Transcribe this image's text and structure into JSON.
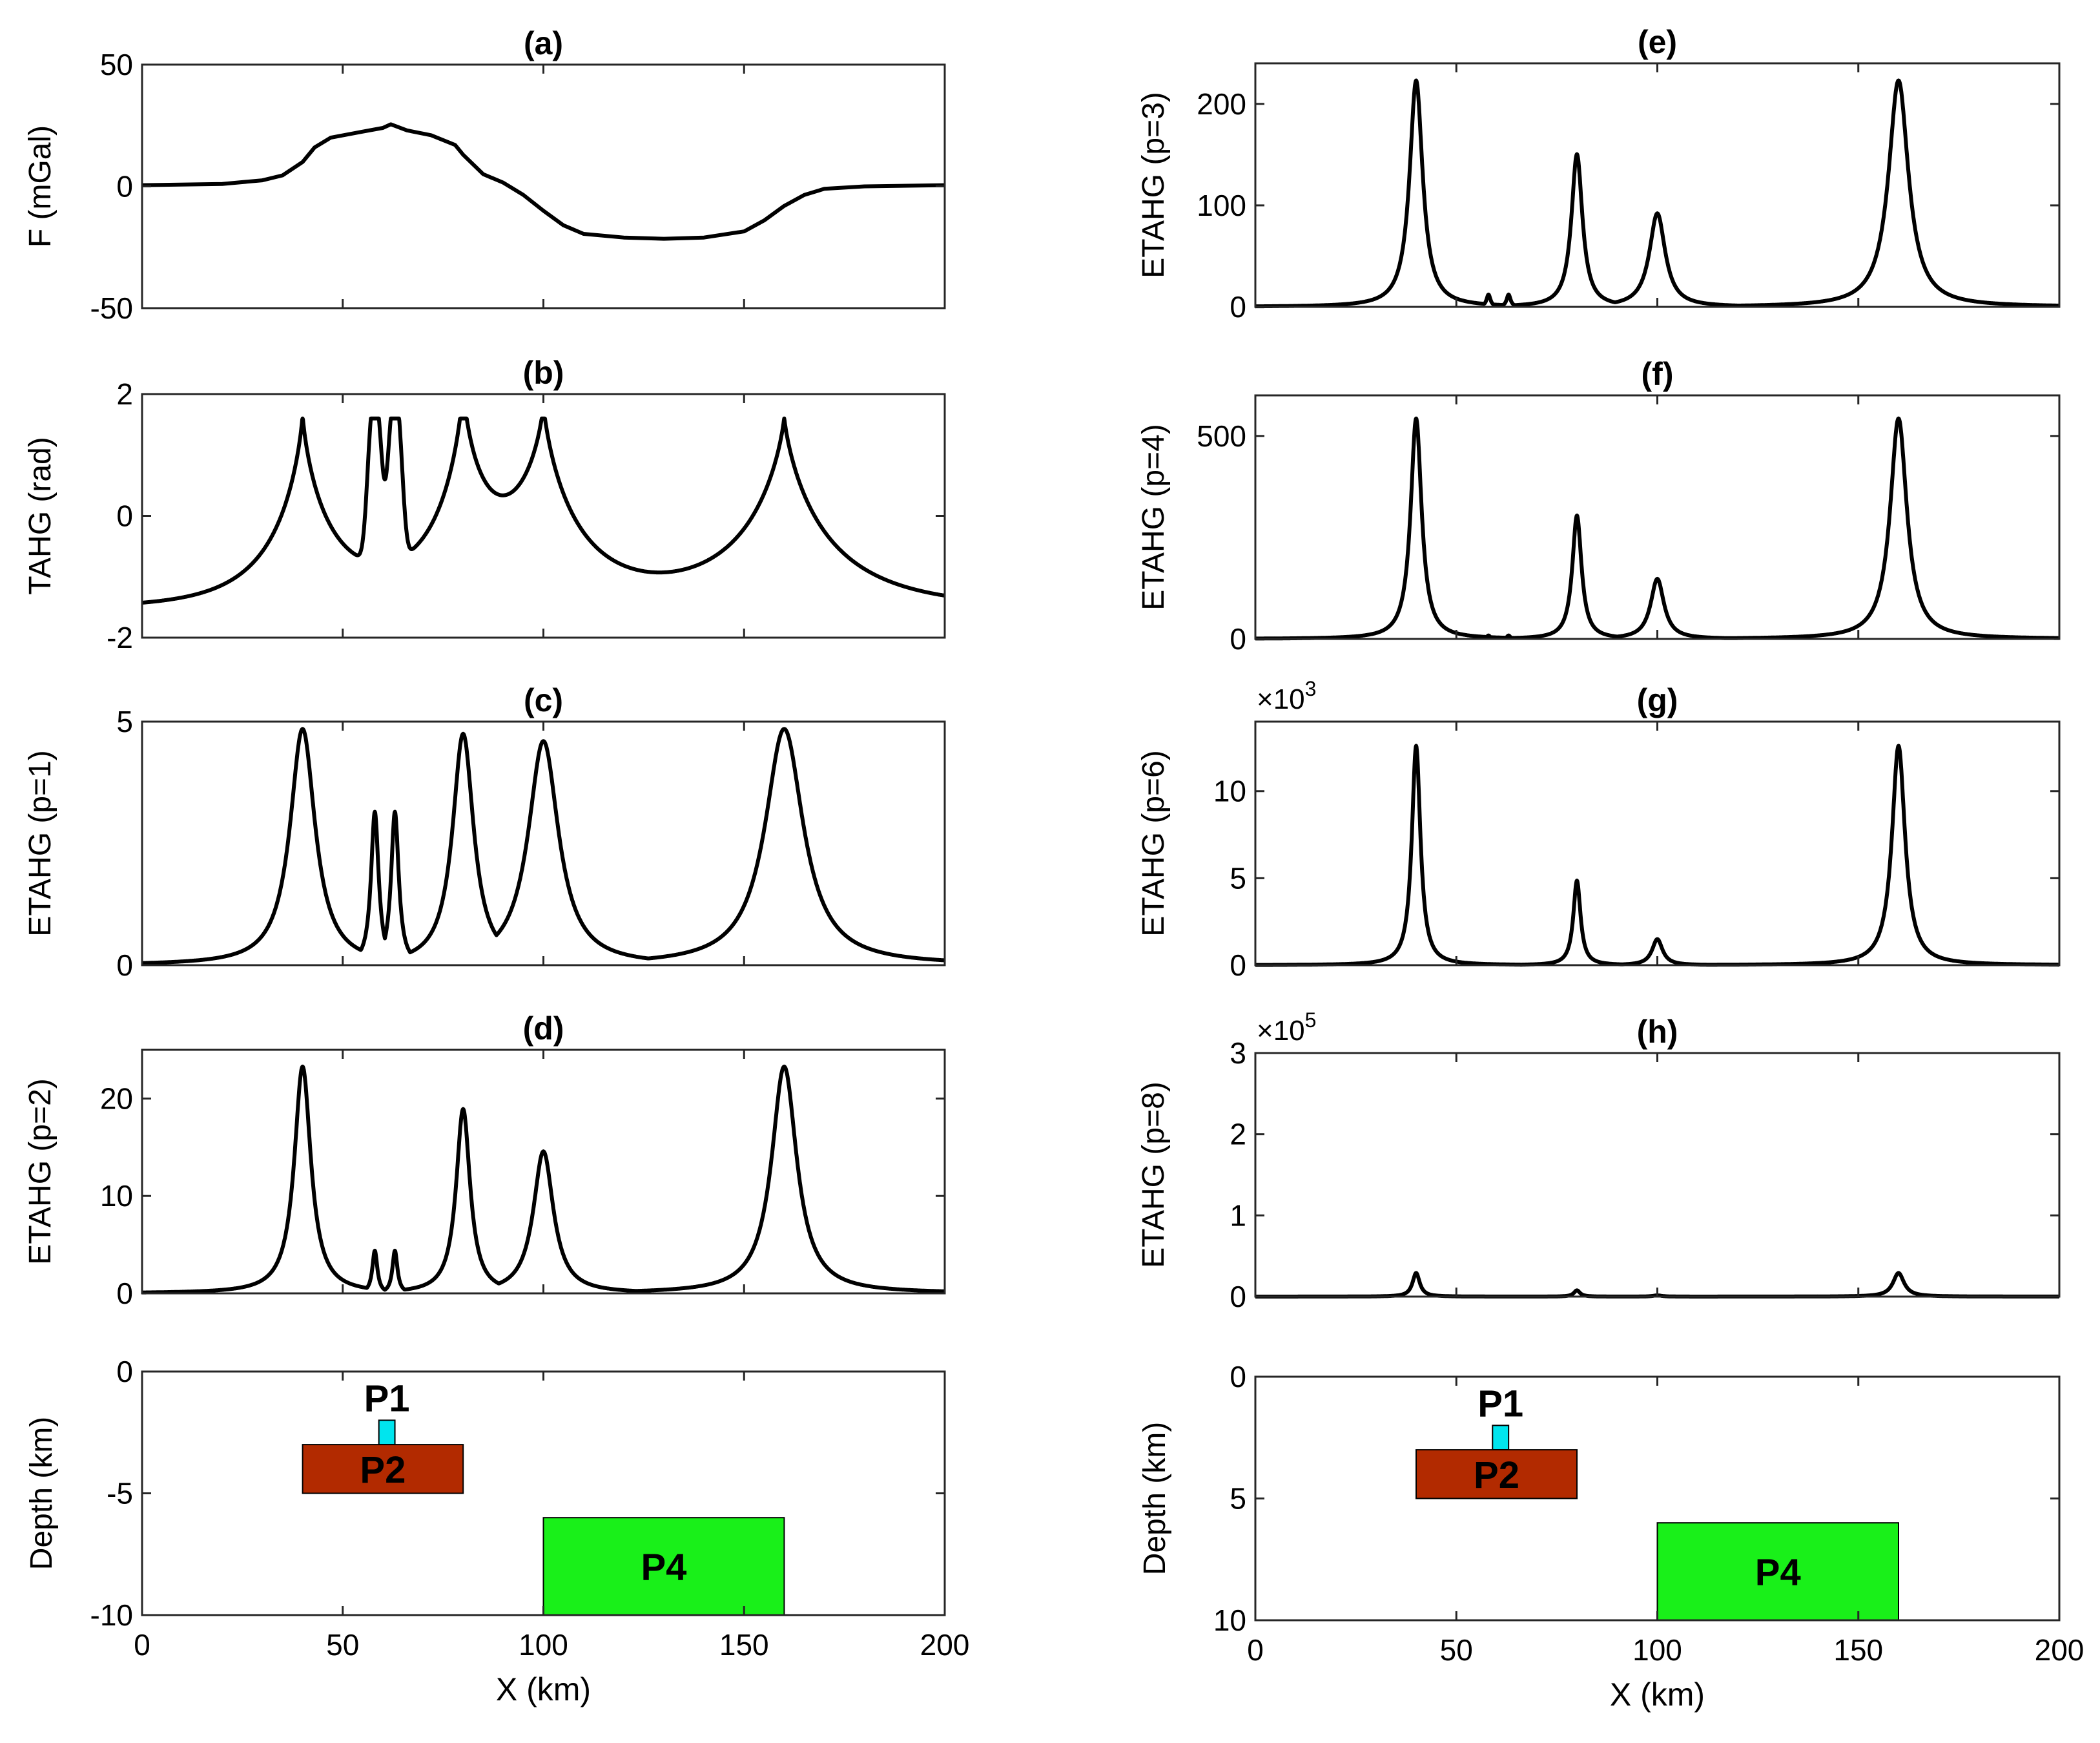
{
  "chart_data": [
    {
      "id": "a",
      "type": "line",
      "title": "(a)",
      "ylabel": "F (mGal)",
      "ylim": [
        -50,
        50
      ],
      "yticks": [
        -50,
        0,
        50
      ],
      "xlim": [
        0,
        200
      ],
      "series": [
        {
          "name": "F",
          "x": [
            0,
            20,
            30,
            35,
            40,
            43,
            47,
            55,
            60,
            62,
            66,
            72,
            78,
            80,
            85,
            90,
            95,
            100,
            105,
            110,
            120,
            130,
            140,
            150,
            155,
            160,
            165,
            170,
            180,
            200
          ],
          "values": [
            0.5,
            1,
            2.5,
            4.5,
            10,
            16,
            20,
            22.5,
            24,
            25.5,
            23,
            21,
            17,
            13,
            5,
            1.5,
            -3.5,
            -10,
            -16,
            -19.5,
            -21,
            -21.5,
            -21,
            -18.5,
            -14,
            -8,
            -3.5,
            -1,
            0,
            0.5
          ]
        }
      ]
    },
    {
      "id": "b",
      "type": "line",
      "title": "(b)",
      "ylabel": "TAHG (rad)",
      "ylim": [
        -2,
        2
      ],
      "yticks": [
        -2,
        0,
        2
      ],
      "xlim": [
        0,
        200
      ],
      "series": [
        {
          "name": "TAHG",
          "kind": "tahg"
        }
      ]
    },
    {
      "id": "c",
      "type": "line",
      "title": "(c)",
      "ylabel": "ETAHG (p=1)",
      "ylim": [
        0,
        5
      ],
      "yticks": [
        0,
        5
      ],
      "xlim": [
        0,
        200
      ],
      "series": [
        {
          "name": "ETAHG p=1",
          "kind": "etahg",
          "p": 1
        }
      ]
    },
    {
      "id": "d",
      "type": "line",
      "title": "(d)",
      "ylabel": "ETAHG (p=2)",
      "ylim": [
        0,
        25
      ],
      "yticks": [
        0,
        10,
        20
      ],
      "xlim": [
        0,
        200
      ],
      "series": [
        {
          "name": "ETAHG p=2",
          "kind": "etahg",
          "p": 2
        }
      ]
    },
    {
      "id": "e",
      "type": "line",
      "title": "(e)",
      "ylabel": "ETAHG (p=3)",
      "ylim": [
        0,
        240
      ],
      "yticks": [
        0,
        100,
        200
      ],
      "xlim": [
        0,
        200
      ],
      "series": [
        {
          "name": "ETAHG p=3",
          "kind": "etahg",
          "p": 3
        }
      ]
    },
    {
      "id": "f",
      "type": "line",
      "title": "(f)",
      "ylabel": "ETAHG (p=4)",
      "ylim": [
        0,
        600
      ],
      "yticks": [
        0,
        500
      ],
      "xlim": [
        0,
        200
      ],
      "series": [
        {
          "name": "ETAHG p=4",
          "kind": "etahg",
          "p": 4
        }
      ]
    },
    {
      "id": "g",
      "type": "line",
      "title": "(g)",
      "ylabel": "ETAHG (p=6)",
      "multiplier_base": "×10",
      "multiplier_exp": "3",
      "ylim": [
        0,
        14
      ],
      "yticks": [
        0,
        5,
        10
      ],
      "xlim": [
        0,
        200
      ],
      "series": [
        {
          "name": "ETAHG p=6",
          "kind": "etahg",
          "p": 6
        }
      ]
    },
    {
      "id": "h",
      "type": "line",
      "title": "(h)",
      "ylabel": "ETAHG (p=8)",
      "multiplier_base": "×10",
      "multiplier_exp": "5",
      "ylim": [
        0,
        3
      ],
      "yticks": [
        0,
        1,
        2,
        3
      ],
      "xlim": [
        0,
        200
      ],
      "series": [
        {
          "name": "ETAHG p=8",
          "kind": "etahg",
          "p": 8
        }
      ]
    },
    {
      "id": "model-left",
      "type": "diagram",
      "ylabel": "Depth (km)",
      "xlabel": "X (km)",
      "ylim": [
        -10,
        0
      ],
      "yticks": [
        0,
        -5,
        -10
      ],
      "xlim": [
        0,
        200
      ],
      "xticks": [
        0,
        50,
        100,
        150,
        200
      ],
      "bodies": [
        {
          "label": "P1",
          "x": [
            59,
            63
          ],
          "depth": [
            2,
            3
          ],
          "color": "#00e5ee"
        },
        {
          "label": "P2",
          "x": [
            40,
            80
          ],
          "depth": [
            3,
            5
          ],
          "color": "#b22a00"
        },
        {
          "label": "P4",
          "x": [
            100,
            160
          ],
          "depth": [
            6,
            10
          ],
          "color": "#19f019"
        }
      ]
    },
    {
      "id": "model-right",
      "type": "diagram",
      "ylabel": "Depth (km)",
      "xlabel": "X (km)",
      "ylim": [
        0,
        10
      ],
      "yticks": [
        0,
        5,
        10
      ],
      "xlim": [
        0,
        200
      ],
      "xticks": [
        0,
        50,
        100,
        150,
        200
      ],
      "bodies": [
        {
          "label": "P1",
          "x": [
            59,
            63
          ],
          "depth": [
            2,
            3
          ],
          "color": "#00e5ee"
        },
        {
          "label": "P2",
          "x": [
            40,
            80
          ],
          "depth": [
            3,
            5
          ],
          "color": "#b22a00"
        },
        {
          "label": "P4",
          "x": [
            100,
            160
          ],
          "depth": [
            6,
            10
          ],
          "color": "#19f019"
        }
      ]
    }
  ],
  "peaks": [
    {
      "x": 40,
      "w": 3.8,
      "c1": 4.85,
      "ratio": 1.0
    },
    {
      "x": 58,
      "w": 1.15,
      "c1": 3.15,
      "ratio": 0.29
    },
    {
      "x": 63,
      "w": 1.15,
      "c1": 3.15,
      "ratio": 0.29
    },
    {
      "x": 80,
      "w": 3.2,
      "c1": 4.75,
      "ratio": 0.83
    },
    {
      "x": 100,
      "w": 4.6,
      "c1": 4.6,
      "ratio": 0.66
    },
    {
      "x": 160,
      "w": 5.8,
      "c1": 4.85,
      "ratio": 1.0
    }
  ],
  "tahg_peaks": [
    {
      "x": 40,
      "w": 7.5,
      "amp": 3.1,
      "k": 0.8
    },
    {
      "x": 58,
      "w": 2.2,
      "amp": 2.7,
      "k": 2.5
    },
    {
      "x": 63,
      "w": 2.2,
      "amp": 2.7,
      "k": 2.5
    },
    {
      "x": 80,
      "w": 6.5,
      "amp": 3.1,
      "k": 0.8
    },
    {
      "x": 100,
      "w": 9,
      "amp": 3.0,
      "k": 0.8
    },
    {
      "x": 160,
      "w": 11,
      "amp": 3.1,
      "k": 0.8
    }
  ],
  "tahg_base": -1.5
}
